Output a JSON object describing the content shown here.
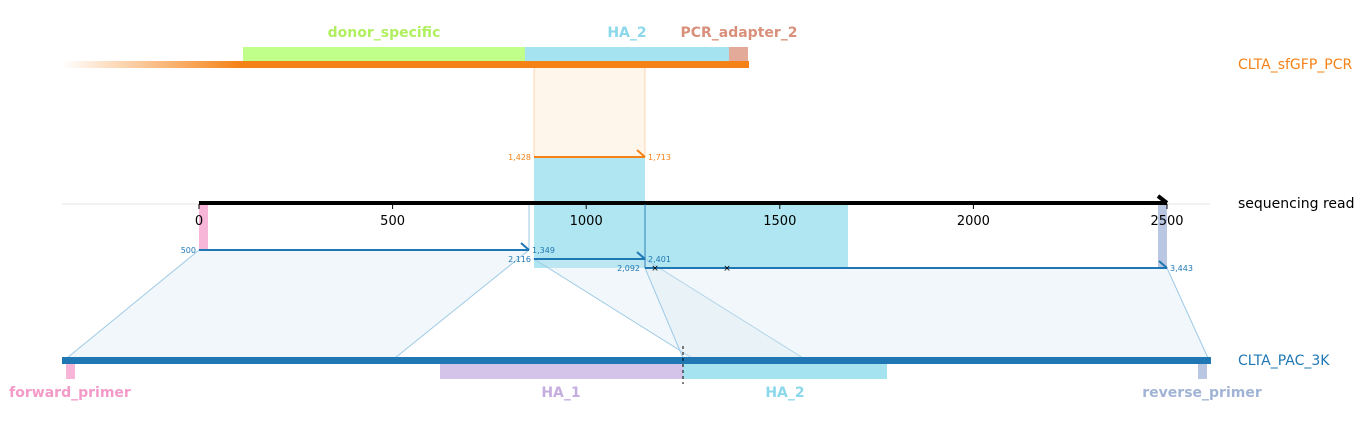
{
  "read": {
    "label": "sequencing read",
    "ticks": [
      {
        "v": 0,
        "label": "0"
      },
      {
        "v": 500,
        "label": "500"
      },
      {
        "v": 1000,
        "label": "1000"
      },
      {
        "v": 1500,
        "label": "1500"
      },
      {
        "v": 2000,
        "label": "2000"
      },
      {
        "v": 2500,
        "label": "2500"
      }
    ],
    "range": [
      -355,
      2620
    ],
    "arrow_end": 2500
  },
  "top_ref": {
    "name": "CLTA_sfGFP_PCR",
    "color": "#f58216",
    "features": [
      {
        "label": "donor_specific",
        "color": "#bfff8a",
        "text_color": "#b0f060",
        "start": 100,
        "end": 857
      },
      {
        "label": "HA_2",
        "color": "#a6e3f0",
        "text_color": "#8ad8ea",
        "start": 857,
        "end": 1409
      },
      {
        "label": "PCR_adapter_2",
        "color": "#e3aa9a",
        "text_color": "#d9907a",
        "start": 1409,
        "end": 1462
      }
    ],
    "alignment": {
      "ref_start": "1,428",
      "ref_end": "1,713",
      "read_start": 870,
      "read_end": 1155
    }
  },
  "bottom_ref": {
    "name": "CLTA_PAC_3K",
    "color": "#1f77b4",
    "features": [
      {
        "label": "forward_primer",
        "color": "#f7b6d8",
        "text_color": "#f49ac8",
        "start": -355,
        "end": -335
      },
      {
        "label": "HA_1",
        "color": "#d4c4ea",
        "text_color": "#c4addf",
        "start": 240,
        "end": 870
      },
      {
        "label": "HA_2",
        "color": "#a6e3f0",
        "text_color": "#8ad8ea",
        "start": 870,
        "end": 1780
      },
      {
        "label": "reverse_primer",
        "color": "#b9c7e2",
        "text_color": "#a2b4d6",
        "start": 2592,
        "end": 2612
      }
    ],
    "alignments": [
      {
        "ref_start": "500",
        "ref_end": "1,349",
        "read_start": 0,
        "read_end": 850
      },
      {
        "ref_start": "2,116",
        "ref_end": "2,401",
        "read_start": 870,
        "read_end": 1155
      },
      {
        "ref_start": "2,092",
        "ref_end": "3,443",
        "read_start": 1155,
        "read_end": 2500
      }
    ]
  }
}
